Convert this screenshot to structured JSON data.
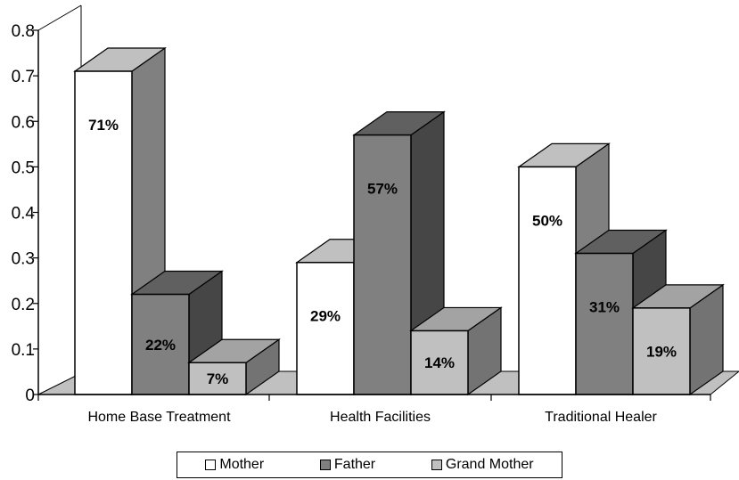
{
  "chart_data": {
    "type": "bar",
    "categories": [
      "Home Base Treatment",
      "Health Facilities",
      "Traditional Healer"
    ],
    "series": [
      {
        "name": "Mother",
        "values": [
          0.71,
          0.29,
          0.5
        ],
        "labels": [
          "71%",
          "29%",
          "50%"
        ],
        "color": "#ffffff"
      },
      {
        "name": "Father",
        "values": [
          0.22,
          0.57,
          0.31
        ],
        "labels": [
          "22%",
          "57%",
          "31%"
        ],
        "color": "#808080"
      },
      {
        "name": "Grand Mother",
        "values": [
          0.07,
          0.14,
          0.19
        ],
        "labels": [
          "7%",
          "14%",
          "19%"
        ],
        "color": "#c0c0c0"
      }
    ],
    "y_ticks": [
      "0",
      "0.1",
      "0.2",
      "0.3",
      "0.4",
      "0.5",
      "0.6",
      "0.7",
      "0.8"
    ],
    "ylim": [
      0,
      0.8
    ],
    "title": "",
    "xlabel": "",
    "ylabel": "",
    "legend_position": "bottom",
    "style": "3d-clustered-column",
    "grid": false
  }
}
